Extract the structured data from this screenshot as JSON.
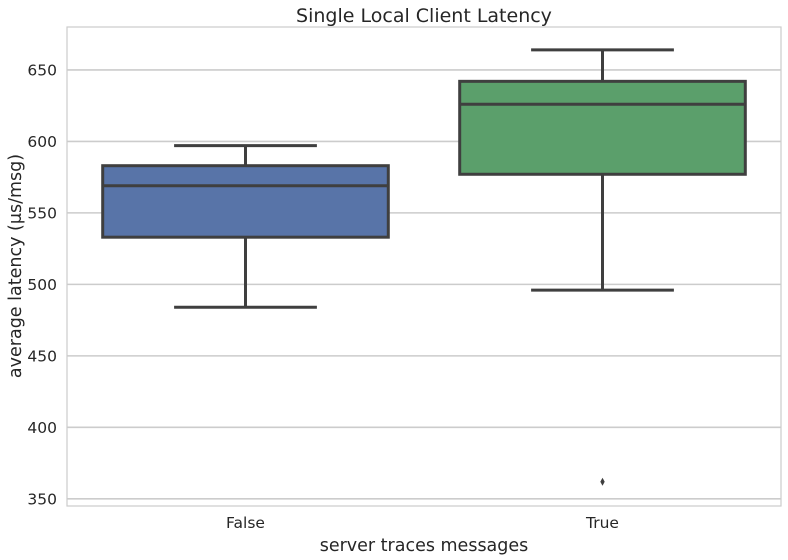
{
  "chart_data": {
    "type": "box",
    "title": "Single Local Client Latency",
    "xlabel": "server traces messages",
    "ylabel": "average latency (μs/msg)",
    "categories": [
      "False",
      "True"
    ],
    "yticks": [
      350,
      400,
      450,
      500,
      550,
      600,
      650
    ],
    "ylim": [
      345,
      680
    ],
    "grid": true,
    "boxes": [
      {
        "category": "False",
        "whisker_low": 484,
        "q1": 533,
        "median": 569,
        "q3": 583,
        "whisker_high": 597,
        "outliers": [],
        "color": "#5874a8"
      },
      {
        "category": "True",
        "whisker_low": 496,
        "q1": 577,
        "median": 626,
        "q3": 642,
        "whisker_high": 664,
        "outliers": [
          362
        ],
        "color": "#5b9f6b"
      }
    ]
  }
}
